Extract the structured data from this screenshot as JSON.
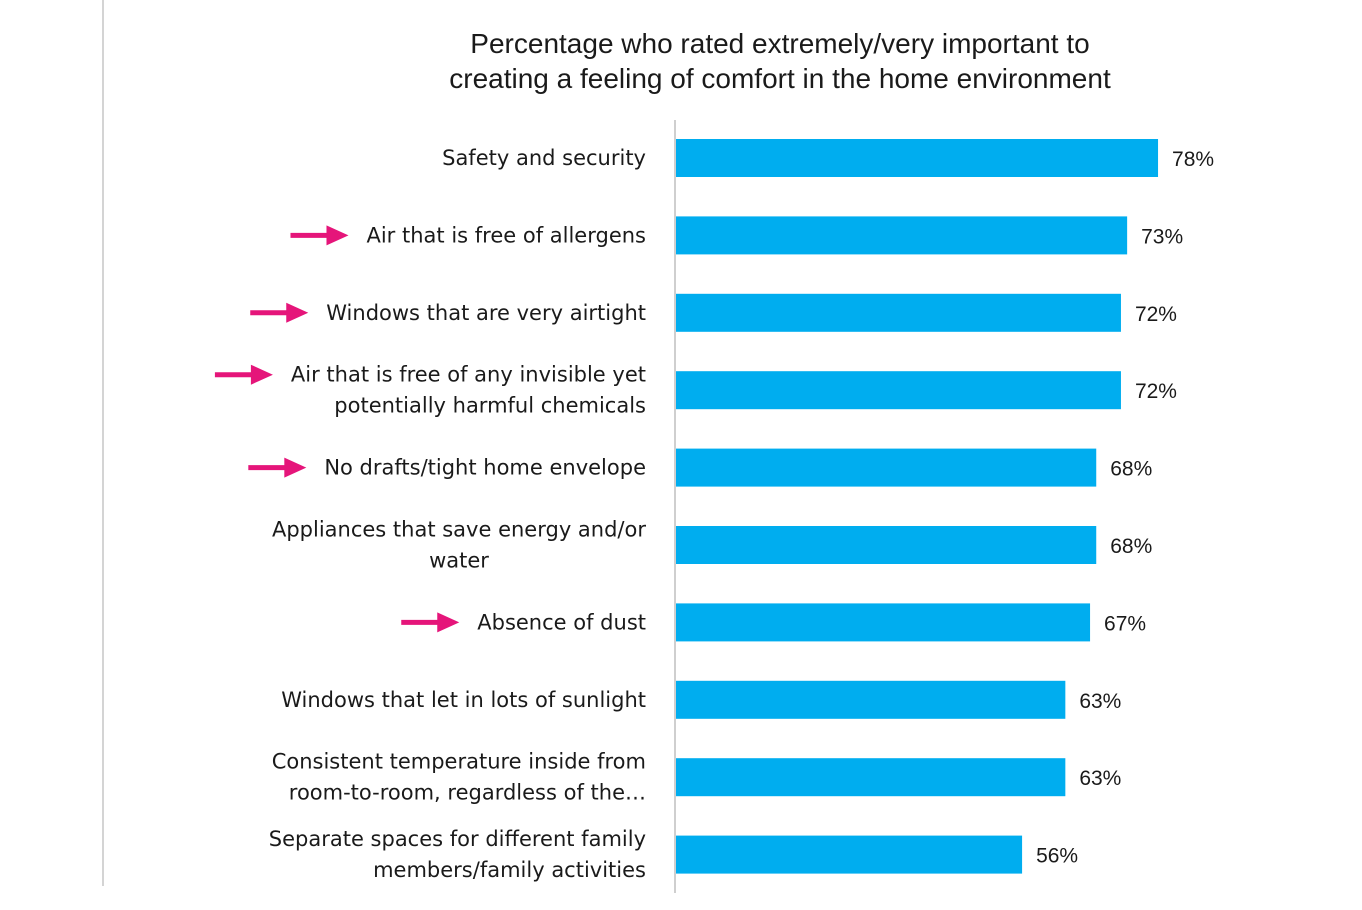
{
  "chart_data": {
    "type": "bar",
    "orientation": "horizontal",
    "title": [
      "Percentage who rated extremely/very important to",
      "creating a feeling of comfort in the home environment"
    ],
    "categories": [
      [
        "Safety and security"
      ],
      [
        "Air that is free of allergens"
      ],
      [
        "Windows that are very airtight"
      ],
      [
        "Air that is free of any invisible yet",
        "potentially harmful chemicals"
      ],
      [
        "No drafts/tight home envelope"
      ],
      [
        "Appliances that save energy and/or",
        "water"
      ],
      [
        "Absence of dust"
      ],
      [
        "Windows that let in lots of sunlight"
      ],
      [
        "Consistent temperature inside from",
        "room-to-room, regardless of the…"
      ],
      [
        "Separate spaces for different family",
        "members/family activities"
      ]
    ],
    "values": [
      78,
      73,
      72,
      72,
      68,
      68,
      67,
      63,
      63,
      56
    ],
    "value_labels": [
      "78%",
      "73%",
      "72%",
      "72%",
      "68%",
      "68%",
      "67%",
      "63%",
      "63%",
      "56%"
    ],
    "highlighted": [
      false,
      true,
      true,
      true,
      true,
      false,
      true,
      false,
      false,
      false
    ],
    "xlim": [
      0,
      100
    ],
    "grid": false,
    "colors": {
      "bar": "#00ADEF",
      "arrow": "#E5157A",
      "axis": "#cfcfcf"
    }
  }
}
